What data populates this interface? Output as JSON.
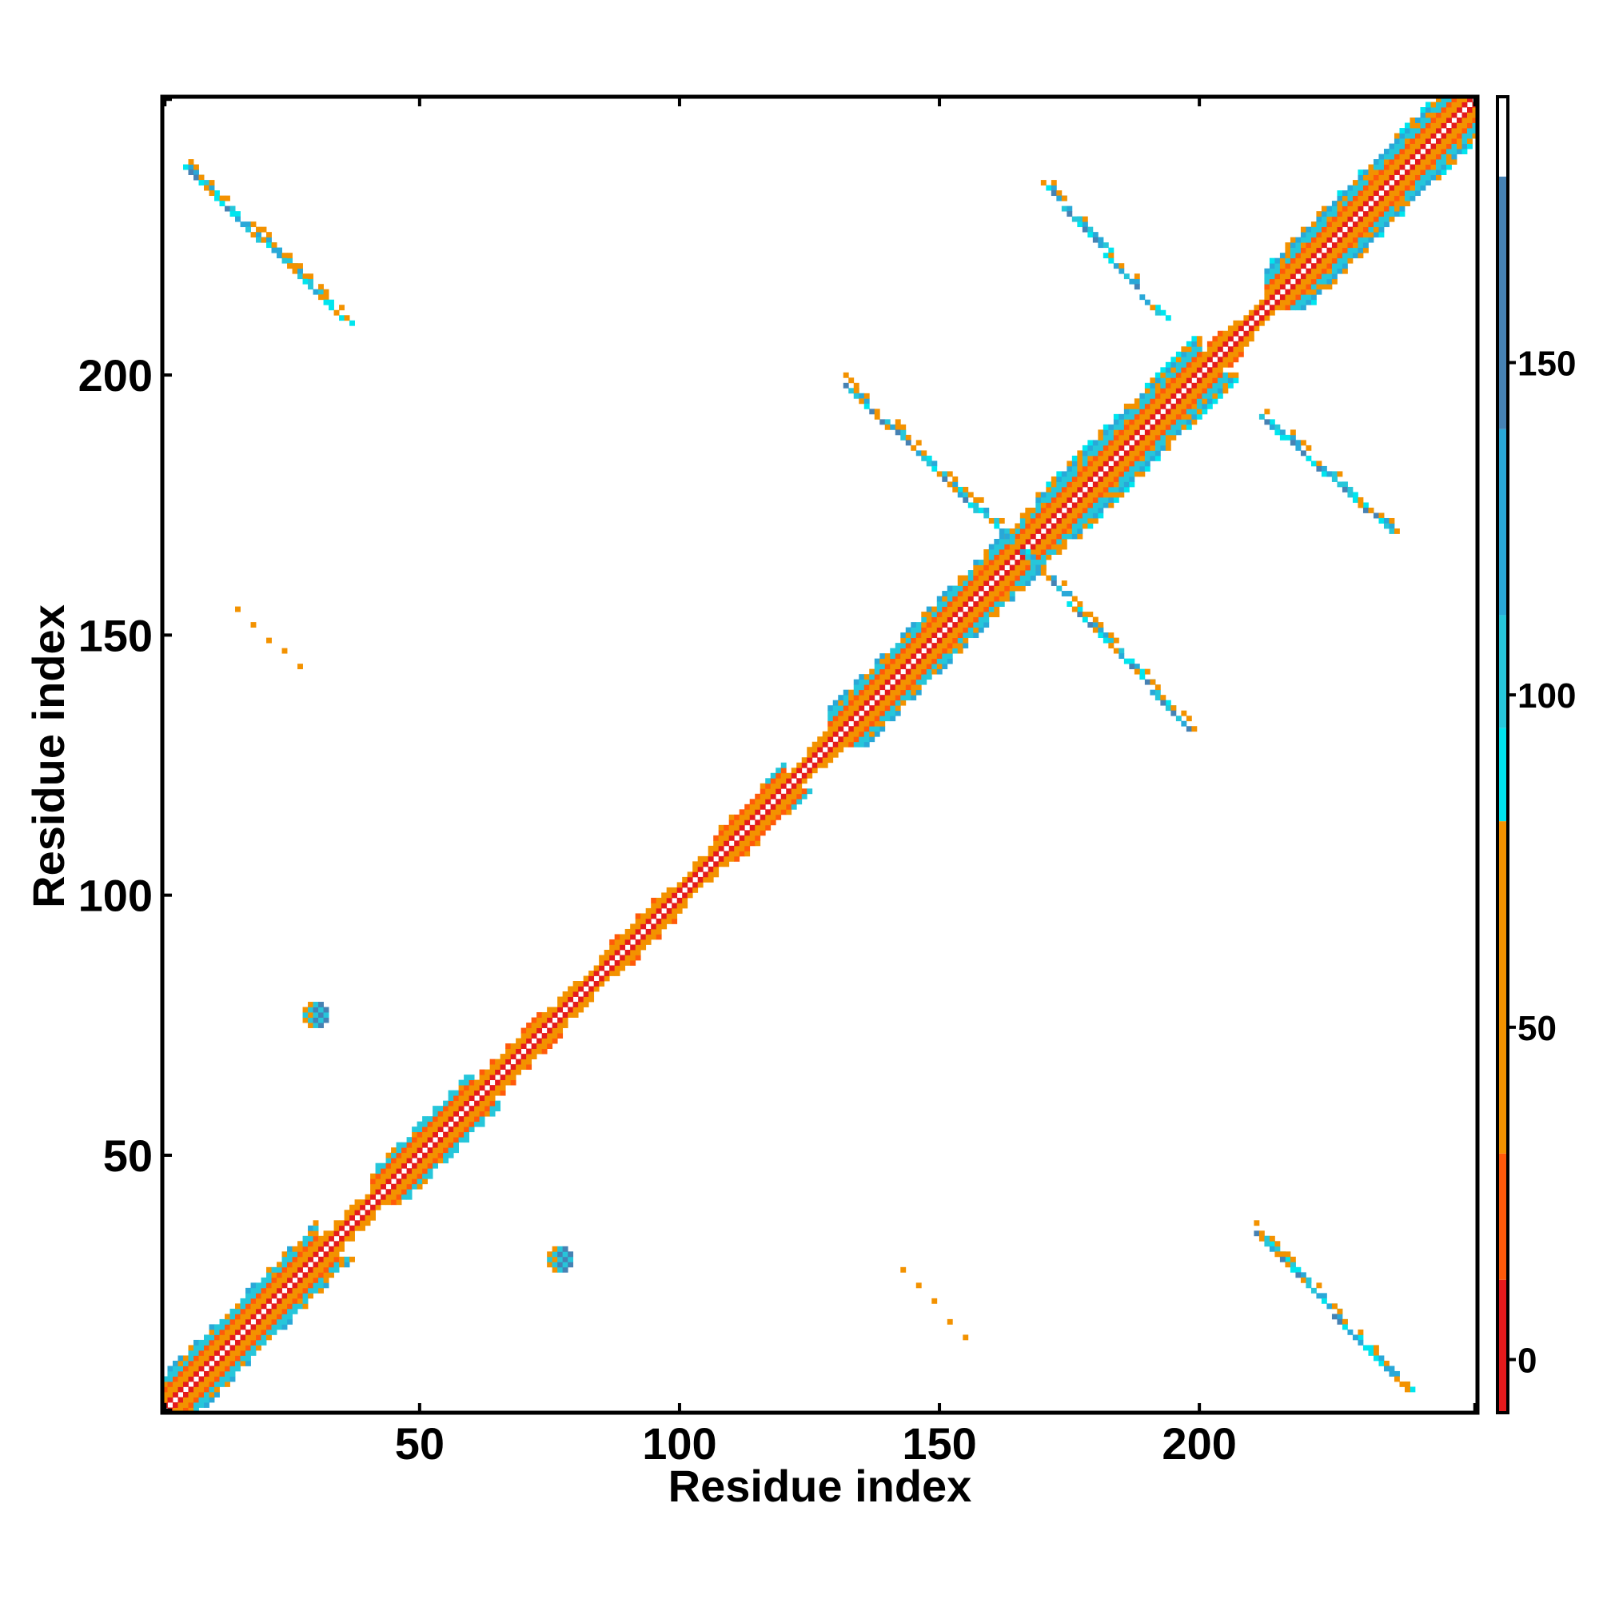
{
  "chart_data": {
    "type": "heatmap",
    "title": "",
    "xlabel": "Residue index",
    "ylabel": "Residue index",
    "xlim": [
      1,
      253
    ],
    "ylim": [
      1,
      253
    ],
    "x_ticks": [
      50,
      100,
      150,
      200
    ],
    "y_ticks": [
      50,
      100,
      150,
      200
    ],
    "grid": false,
    "colorbar": {
      "placement": "right",
      "ticks": [
        0,
        50,
        100,
        150
      ],
      "range": [
        -8,
        190
      ],
      "bands": [
        {
          "from": -8,
          "to": 12,
          "color": "#e41a1c"
        },
        {
          "from": 12,
          "to": 31,
          "color": "#ff5a0a"
        },
        {
          "from": 31,
          "to": 81,
          "color": "#f39200"
        },
        {
          "from": 81,
          "to": 95,
          "color": "#00e5ee"
        },
        {
          "from": 95,
          "to": 112,
          "color": "#26c6da"
        },
        {
          "from": 112,
          "to": 140,
          "color": "#29a8d8"
        },
        {
          "from": 140,
          "to": 178,
          "color": "#4682b4"
        },
        {
          "from": 178,
          "to": 190,
          "color": "#ffffff"
        }
      ]
    },
    "features": [
      {
        "kind": "diagonal-band",
        "description": "main diagonal i=j",
        "from": 1,
        "to": 253
      },
      {
        "kind": "antiparallel-strand",
        "x": [
          132,
          166
        ],
        "y": [
          198,
          166
        ]
      },
      {
        "kind": "antiparallel-strand",
        "x": [
          166,
          198
        ],
        "y": [
          166,
          132
        ]
      },
      {
        "kind": "antiparallel-strand",
        "x": [
          170,
          192
        ],
        "y": [
          237,
          212
        ]
      },
      {
        "kind": "antiparallel-strand",
        "x": [
          212,
          237
        ],
        "y": [
          192,
          170
        ]
      },
      {
        "kind": "antiparallel-strand",
        "x": [
          5,
          35
        ],
        "y": [
          240,
          211
        ]
      },
      {
        "kind": "antiparallel-strand",
        "x": [
          211,
          240
        ],
        "y": [
          35,
          5
        ]
      },
      {
        "kind": "patch",
        "x": 30,
        "y": 77
      },
      {
        "kind": "patch",
        "x": 77,
        "y": 30
      },
      {
        "kind": "sparse-contacts",
        "x": [
          15,
          28
        ],
        "y": [
          155,
          143
        ]
      },
      {
        "kind": "sparse-contacts",
        "x": [
          143,
          155
        ],
        "y": [
          28,
          15
        ]
      }
    ]
  }
}
